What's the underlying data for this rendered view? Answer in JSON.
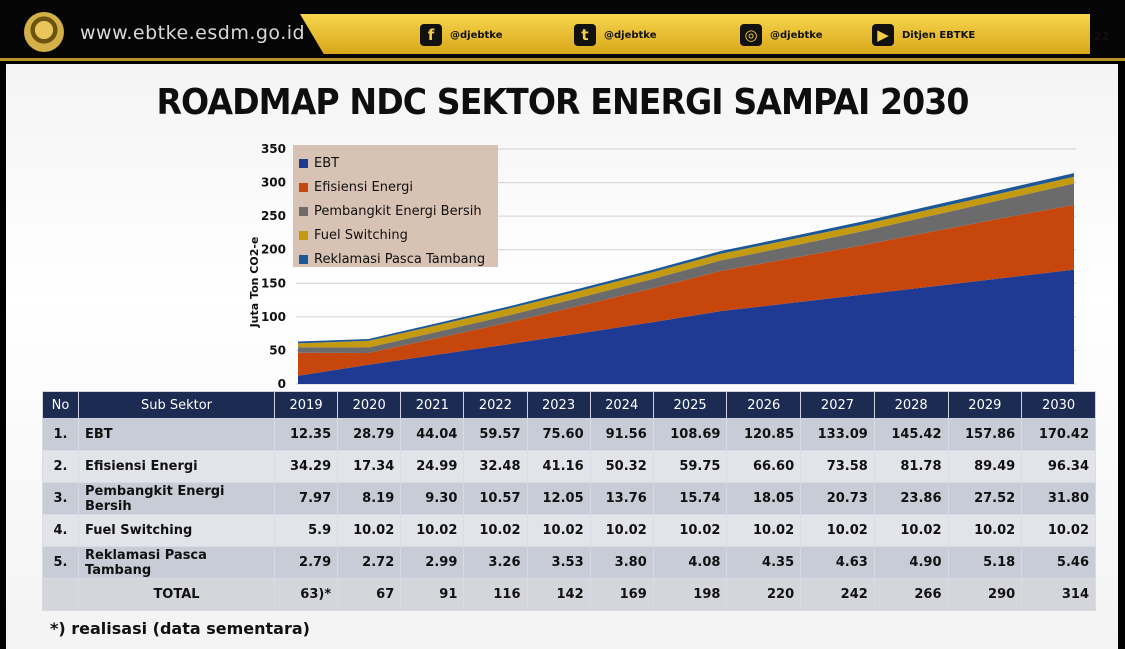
{
  "header": {
    "site_url": "www.ebtke.esdm.go.id",
    "page_number": "22",
    "social": [
      {
        "icon": "facebook-icon",
        "glyph": "f",
        "handle": "@djebtke"
      },
      {
        "icon": "twitter-icon",
        "glyph": "t",
        "handle": "@djebtke"
      },
      {
        "icon": "instagram-icon",
        "glyph": "◎",
        "handle": "@djebtke"
      },
      {
        "icon": "youtube-icon",
        "glyph": "▶",
        "handle": "Ditjen EBTKE"
      }
    ]
  },
  "title": "ROADMAP NDC SEKTOR ENERGI SAMPAI 2030",
  "chart_data": {
    "type": "area",
    "stacked": true,
    "ylabel": "Juta Ton CO2-e",
    "ylim": [
      0,
      350
    ],
    "yticks": [
      "0",
      "50",
      "100",
      "150",
      "200",
      "250",
      "300",
      "350"
    ],
    "grid": true,
    "legend_position": "top-left",
    "categories": [
      "2019",
      "2020",
      "2021",
      "2022",
      "2023",
      "2024",
      "2025",
      "2026",
      "2027",
      "2028",
      "2029",
      "2030"
    ],
    "series": [
      {
        "name": "EBT",
        "color": "#1f3a93",
        "values": [
          12.35,
          28.79,
          44.04,
          59.57,
          75.6,
          91.56,
          108.69,
          120.85,
          133.09,
          145.42,
          157.86,
          170.42
        ]
      },
      {
        "name": "Efisiensi Energi",
        "color": "#c6460b",
        "values": [
          34.29,
          17.34,
          24.99,
          32.48,
          41.16,
          50.32,
          59.75,
          66.6,
          73.58,
          81.78,
          89.49,
          96.34
        ]
      },
      {
        "name": "Pembangkit Energi Bersih",
        "color": "#6b6b6b",
        "values": [
          7.97,
          8.19,
          9.3,
          10.57,
          12.05,
          13.76,
          15.74,
          18.05,
          20.73,
          23.86,
          27.52,
          31.8
        ]
      },
      {
        "name": "Fuel Switching",
        "color": "#c49a10",
        "values": [
          5.9,
          10.02,
          10.02,
          10.02,
          10.02,
          10.02,
          10.02,
          10.02,
          10.02,
          10.02,
          10.02,
          10.02
        ]
      },
      {
        "name": "Reklamasi Pasca Tambang",
        "color": "#1c5797",
        "values": [
          2.79,
          2.72,
          2.99,
          3.26,
          3.53,
          3.8,
          4.08,
          4.35,
          4.63,
          4.9,
          5.18,
          5.46
        ]
      }
    ]
  },
  "table": {
    "headers": [
      "No",
      "Sub Sektor",
      "2019",
      "2020",
      "2021",
      "2022",
      "2023",
      "2024",
      "2025",
      "2026",
      "2027",
      "2028",
      "2029",
      "2030"
    ],
    "rows": [
      {
        "no": "1.",
        "name": "EBT",
        "values": [
          "12.35",
          "28.79",
          "44.04",
          "59.57",
          "75.60",
          "91.56",
          "108.69",
          "120.85",
          "133.09",
          "145.42",
          "157.86",
          "170.42"
        ]
      },
      {
        "no": "2.",
        "name": "Efisiensi Energi",
        "values": [
          "34.29",
          "17.34",
          "24.99",
          "32.48",
          "41.16",
          "50.32",
          "59.75",
          "66.60",
          "73.58",
          "81.78",
          "89.49",
          "96.34"
        ]
      },
      {
        "no": "3.",
        "name": "Pembangkit Energi Bersih",
        "values": [
          "7.97",
          "8.19",
          "9.30",
          "10.57",
          "12.05",
          "13.76",
          "15.74",
          "18.05",
          "20.73",
          "23.86",
          "27.52",
          "31.80"
        ]
      },
      {
        "no": "4.",
        "name": "Fuel Switching",
        "values": [
          "5.9",
          "10.02",
          "10.02",
          "10.02",
          "10.02",
          "10.02",
          "10.02",
          "10.02",
          "10.02",
          "10.02",
          "10.02",
          "10.02"
        ]
      },
      {
        "no": "5.",
        "name": "Reklamasi Pasca Tambang",
        "values": [
          "2.79",
          "2.72",
          "2.99",
          "3.26",
          "3.53",
          "3.80",
          "4.08",
          "4.35",
          "4.63",
          "4.90",
          "5.18",
          "5.46"
        ]
      }
    ],
    "total": {
      "label": "TOTAL",
      "values": [
        "63)*",
        "67",
        "91",
        "116",
        "142",
        "169",
        "198",
        "220",
        "242",
        "266",
        "290",
        "314"
      ]
    }
  },
  "footnote": "*) realisasi (data sementara)"
}
